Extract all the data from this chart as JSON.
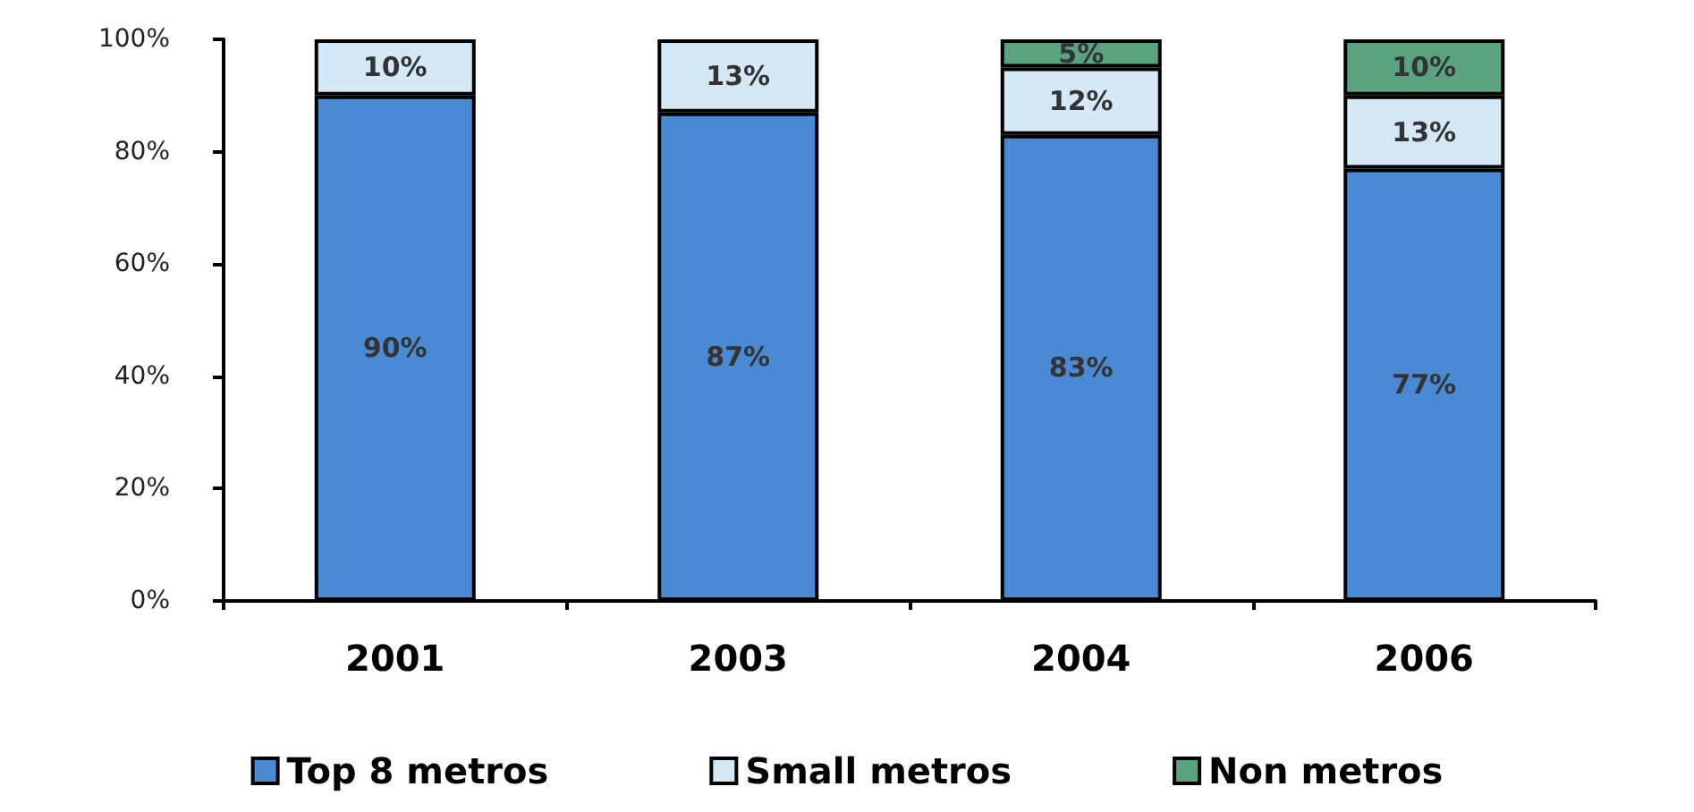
{
  "chart_data": {
    "type": "bar",
    "stacked": true,
    "categories": [
      "2001",
      "2003",
      "2004",
      "2006"
    ],
    "series": [
      {
        "name": "Top 8 metros",
        "color": "#4a8ad4",
        "values": [
          90,
          87,
          83,
          77
        ],
        "value_labels": [
          "90%",
          "87%",
          "83%",
          "77%"
        ]
      },
      {
        "name": "Small metros",
        "color": "#d4e8f6",
        "values": [
          10,
          13,
          12,
          13
        ],
        "value_labels": [
          "10%",
          "13%",
          "12%",
          "13%"
        ]
      },
      {
        "name": "Non metros",
        "color": "#5aa37e",
        "values": [
          null,
          null,
          5,
          10
        ],
        "value_labels": [
          null,
          null,
          "5%",
          "10%"
        ]
      }
    ],
    "ylim": [
      0,
      100
    ],
    "yticks": [
      {
        "value": 0,
        "label": "0%"
      },
      {
        "value": 20,
        "label": "20%"
      },
      {
        "value": 40,
        "label": "40%"
      },
      {
        "value": 60,
        "label": "60%"
      },
      {
        "value": 80,
        "label": "80%"
      },
      {
        "value": 100,
        "label": "100%"
      }
    ],
    "grid": false,
    "legend": "bottom"
  }
}
